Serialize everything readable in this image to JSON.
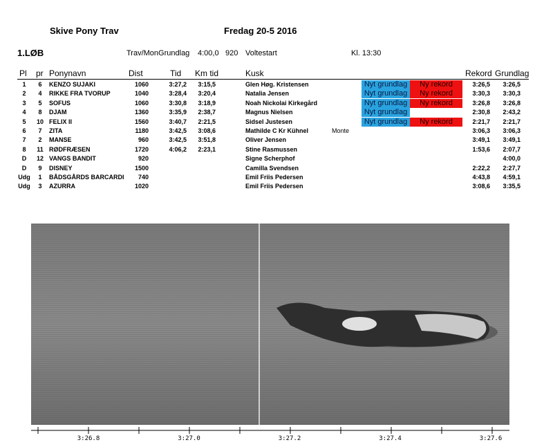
{
  "header": {
    "title": "Skive Pony Trav",
    "date": "Fredag 20-5 2016"
  },
  "race": {
    "number": "1.LØB",
    "type": "Trav/MonGrundlag",
    "time": "4:00,0",
    "distance": "920",
    "start": "Voltestart",
    "clock": "Kl. 13:30"
  },
  "columns": [
    "Pl",
    "pr",
    "Ponynavn",
    "Dist",
    "Tid",
    "Km tid",
    "Kusk",
    "Rekord",
    "Grundlag"
  ],
  "rows": [
    {
      "pl": "1",
      "pr": "6",
      "name": "KENZO SUJAKI",
      "dist": "1060",
      "tid": "3:27,2",
      "km": "3:15,5",
      "kusk": "Glen Høg. Kristensen",
      "grundlag_badge": "Nyt grundlag",
      "rekord_badge": "Ny rekord",
      "rekord": "3:26,5",
      "grundlag": "3:26,5"
    },
    {
      "pl": "2",
      "pr": "4",
      "name": "RIKKE FRA TVORUP",
      "dist": "1040",
      "tid": "3:28,4",
      "km": "3:20,4",
      "kusk": "Natalia Jensen",
      "grundlag_badge": "Nyt grundlag",
      "rekord_badge": "Ny rekord",
      "rekord": "3:30,3",
      "grundlag": "3:30,3"
    },
    {
      "pl": "3",
      "pr": "5",
      "name": "SOFUS",
      "dist": "1060",
      "tid": "3:30,8",
      "km": "3:18,9",
      "kusk": "Noah Nickolai Kirkegård",
      "grundlag_badge": "Nyt grundlag",
      "rekord_badge": "Ny rekord",
      "rekord": "3:26,8",
      "grundlag": "3:26,8"
    },
    {
      "pl": "4",
      "pr": "8",
      "name": "DJAM",
      "dist": "1360",
      "tid": "3:35,9",
      "km": "2:38,7",
      "kusk": "Magnus Nielsen",
      "grundlag_badge": "Nyt grundlag",
      "rekord": "2:30,8",
      "grundlag": "2:43,2"
    },
    {
      "pl": "5",
      "pr": "10",
      "name": "FELIX II",
      "dist": "1560",
      "tid": "3:40,7",
      "km": "2:21,5",
      "kusk": "Sidsel Justesen",
      "grundlag_badge": "Nyt grundlag",
      "rekord_badge": "Ny rekord",
      "rekord": "2:21,7",
      "grundlag": "2:21,7"
    },
    {
      "pl": "6",
      "pr": "7",
      "name": "ZITA",
      "dist": "1180",
      "tid": "3:42,5",
      "km": "3:08,6",
      "kusk": "Mathilde C Kr Kühnel",
      "note": "Monte",
      "rekord": "3:06,3",
      "grundlag": "3:06,3"
    },
    {
      "pl": "7",
      "pr": "2",
      "name": "MANSE",
      "dist": "960",
      "tid": "3:42,5",
      "km": "3:51,8",
      "kusk": "Oliver Jensen",
      "rekord": "3:49,1",
      "grundlag": "3:49,1"
    },
    {
      "pl": "8",
      "pr": "11",
      "name": "RØDFRÆSEN",
      "dist": "1720",
      "tid": "4:06,2",
      "km": "2:23,1",
      "kusk": "Stine Rasmussen",
      "rekord": "1:53,6",
      "grundlag": "2:07,7"
    },
    {
      "pl": "D",
      "pr": "12",
      "name": "VANGS BANDIT",
      "dist": "920",
      "kusk": "Signe Scherphof",
      "grundlag": "4:00,0"
    },
    {
      "pl": "D",
      "pr": "9",
      "name": "DISNEY",
      "dist": "1500",
      "kusk": "Camilla Svendsen",
      "rekord": "2:22,2",
      "grundlag": "2:27,7"
    },
    {
      "pl": "Udg",
      "pr": "1",
      "name": "BÅDSGÅRDS BARCARDI",
      "dist": "740",
      "kusk": "Emil Friis Pedersen",
      "rekord": "4:43,8",
      "grundlag": "4:59,1"
    },
    {
      "pl": "Udg",
      "pr": "3",
      "name": "AZURRA",
      "dist": "1020",
      "kusk": "Emil Friis Pedersen",
      "rekord": "3:08,6",
      "grundlag": "3:35,5"
    }
  ],
  "timeline": [
    "3:26.8",
    "3:27.0",
    "3:27.2",
    "3:27.4",
    "3:27.6"
  ]
}
